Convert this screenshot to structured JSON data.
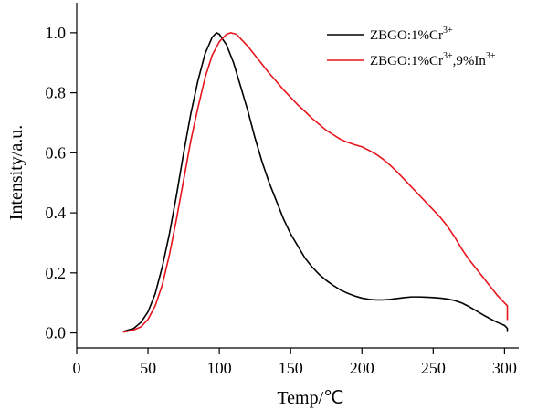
{
  "chart_data": {
    "type": "line",
    "xlabel": "Temp/℃",
    "ylabel": "Intensity/a.u.",
    "xlim": [
      0,
      310
    ],
    "ylim": [
      -0.05,
      1.1
    ],
    "xticks": [
      0,
      50,
      100,
      150,
      200,
      250,
      300
    ],
    "xtick_labels": [
      "0",
      "50",
      "100",
      "150",
      "200",
      "250",
      "300"
    ],
    "yticks": [
      0.0,
      0.2,
      0.4,
      0.6,
      0.8,
      1.0
    ],
    "ytick_labels": [
      "0.0",
      "0.2",
      "0.4",
      "0.6",
      "0.8",
      "1.0"
    ],
    "grid": false,
    "legend_position": "top-right",
    "series": [
      {
        "name": "ZBGO:1%Cr3+",
        "label_base": "ZBGO:1%Cr",
        "label_sup": "3+",
        "color": "#000000",
        "points": [
          [
            33,
            0.005
          ],
          [
            40,
            0.015
          ],
          [
            45,
            0.035
          ],
          [
            50,
            0.07
          ],
          [
            55,
            0.13
          ],
          [
            60,
            0.22
          ],
          [
            65,
            0.33
          ],
          [
            70,
            0.46
          ],
          [
            75,
            0.6
          ],
          [
            80,
            0.73
          ],
          [
            85,
            0.84
          ],
          [
            90,
            0.93
          ],
          [
            95,
            0.985
          ],
          [
            98,
            1.0
          ],
          [
            100,
            0.995
          ],
          [
            105,
            0.96
          ],
          [
            110,
            0.9
          ],
          [
            115,
            0.82
          ],
          [
            120,
            0.74
          ],
          [
            125,
            0.65
          ],
          [
            130,
            0.57
          ],
          [
            135,
            0.5
          ],
          [
            140,
            0.44
          ],
          [
            145,
            0.38
          ],
          [
            150,
            0.33
          ],
          [
            155,
            0.29
          ],
          [
            160,
            0.25
          ],
          [
            165,
            0.22
          ],
          [
            170,
            0.195
          ],
          [
            175,
            0.175
          ],
          [
            180,
            0.158
          ],
          [
            185,
            0.143
          ],
          [
            190,
            0.132
          ],
          [
            195,
            0.123
          ],
          [
            200,
            0.116
          ],
          [
            205,
            0.112
          ],
          [
            210,
            0.11
          ],
          [
            215,
            0.11
          ],
          [
            220,
            0.112
          ],
          [
            225,
            0.115
          ],
          [
            230,
            0.118
          ],
          [
            235,
            0.12
          ],
          [
            240,
            0.12
          ],
          [
            245,
            0.119
          ],
          [
            250,
            0.118
          ],
          [
            255,
            0.116
          ],
          [
            260,
            0.113
          ],
          [
            265,
            0.108
          ],
          [
            270,
            0.1
          ],
          [
            275,
            0.088
          ],
          [
            280,
            0.074
          ],
          [
            285,
            0.06
          ],
          [
            290,
            0.047
          ],
          [
            295,
            0.035
          ],
          [
            300,
            0.025
          ],
          [
            302,
            0.015
          ],
          [
            302,
            0.005
          ]
        ]
      },
      {
        "name": "ZBGO:1%Cr3+,9%In3+",
        "label_base": "ZBGO:1%Cr",
        "label_sup": "3+",
        "label_mid": ",9%In",
        "label_sup2": "3+",
        "color": "#e8141c",
        "points": [
          [
            33,
            0.003
          ],
          [
            40,
            0.01
          ],
          [
            45,
            0.02
          ],
          [
            50,
            0.045
          ],
          [
            55,
            0.09
          ],
          [
            60,
            0.16
          ],
          [
            65,
            0.26
          ],
          [
            70,
            0.38
          ],
          [
            75,
            0.51
          ],
          [
            80,
            0.64
          ],
          [
            85,
            0.75
          ],
          [
            90,
            0.85
          ],
          [
            95,
            0.925
          ],
          [
            100,
            0.97
          ],
          [
            105,
            0.995
          ],
          [
            108,
            1.0
          ],
          [
            112,
            0.995
          ],
          [
            115,
            0.98
          ],
          [
            120,
            0.955
          ],
          [
            125,
            0.925
          ],
          [
            130,
            0.895
          ],
          [
            135,
            0.865
          ],
          [
            140,
            0.838
          ],
          [
            145,
            0.81
          ],
          [
            150,
            0.785
          ],
          [
            155,
            0.76
          ],
          [
            160,
            0.738
          ],
          [
            165,
            0.715
          ],
          [
            170,
            0.695
          ],
          [
            175,
            0.675
          ],
          [
            180,
            0.66
          ],
          [
            185,
            0.645
          ],
          [
            190,
            0.635
          ],
          [
            195,
            0.627
          ],
          [
            200,
            0.62
          ],
          [
            205,
            0.608
          ],
          [
            210,
            0.595
          ],
          [
            215,
            0.578
          ],
          [
            220,
            0.558
          ],
          [
            225,
            0.535
          ],
          [
            230,
            0.51
          ],
          [
            235,
            0.485
          ],
          [
            240,
            0.46
          ],
          [
            245,
            0.435
          ],
          [
            250,
            0.41
          ],
          [
            255,
            0.385
          ],
          [
            260,
            0.355
          ],
          [
            265,
            0.32
          ],
          [
            270,
            0.28
          ],
          [
            275,
            0.245
          ],
          [
            280,
            0.215
          ],
          [
            285,
            0.185
          ],
          [
            290,
            0.155
          ],
          [
            295,
            0.125
          ],
          [
            300,
            0.1
          ],
          [
            302,
            0.09
          ],
          [
            302,
            0.045
          ]
        ]
      }
    ]
  }
}
